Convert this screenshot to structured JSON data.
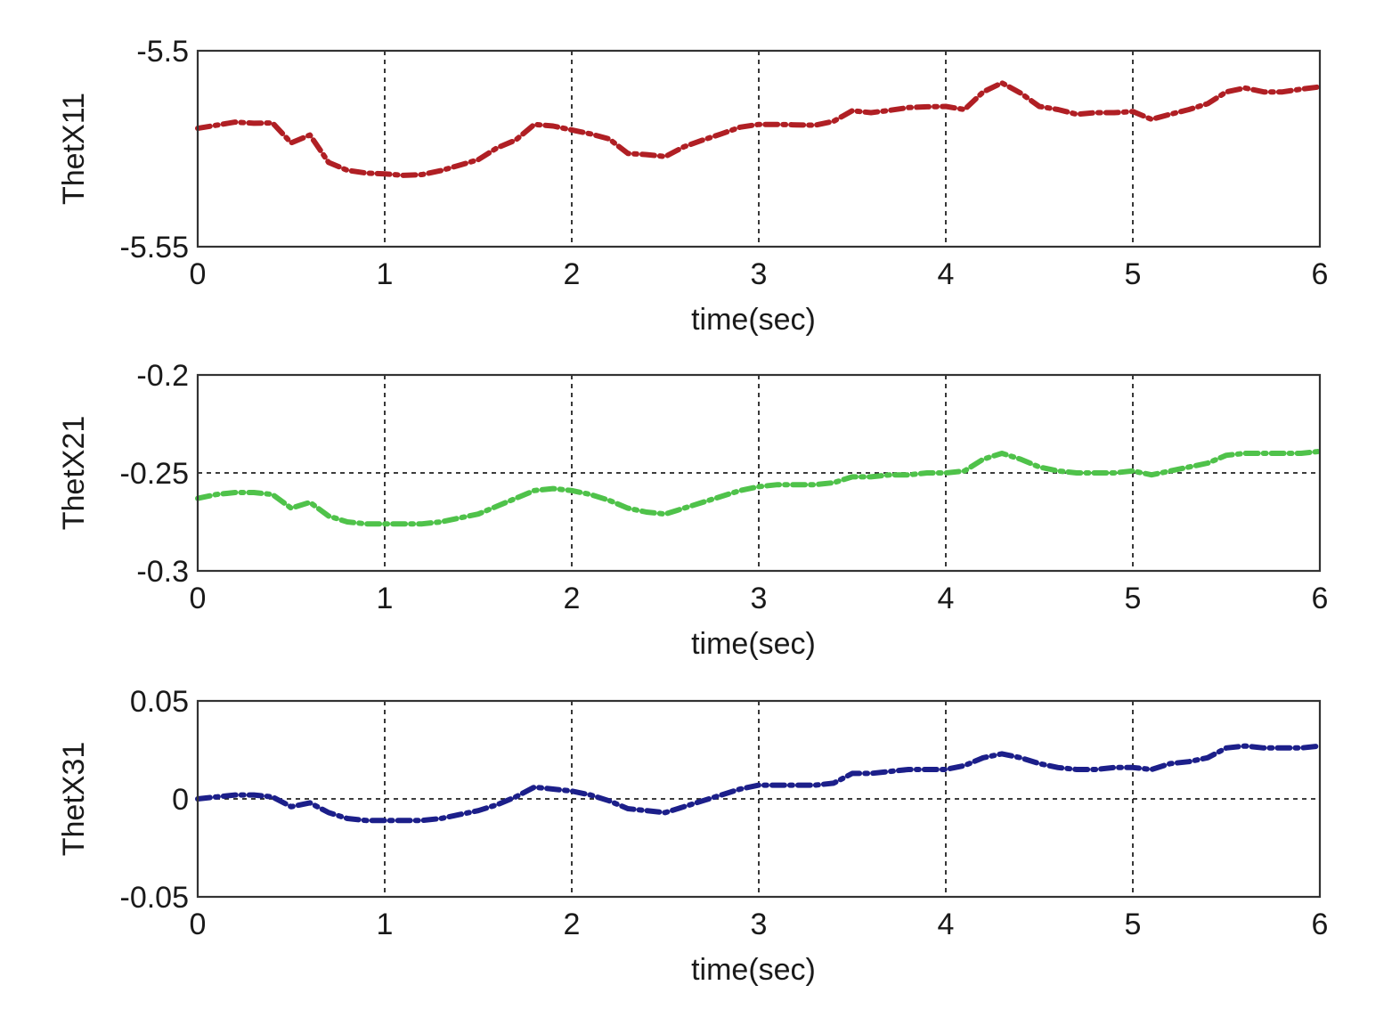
{
  "chart_data": [
    {
      "type": "line",
      "xlabel": "time(sec)",
      "ylabel": "ThetX11",
      "xlim": [
        0,
        6
      ],
      "ylim": [
        -5.55,
        -5.5
      ],
      "xticks": [
        0,
        1,
        2,
        3,
        4,
        5,
        6
      ],
      "xtick_labels": [
        "0",
        "1",
        "2",
        "3",
        "4",
        "5",
        "6"
      ],
      "yticks": [
        -5.55,
        -5.5
      ],
      "ytick_labels": [
        "-5.55",
        "-5.5"
      ],
      "grid": true,
      "color": "#b01f24",
      "series": [
        {
          "x": [
            0,
            0.1,
            0.2,
            0.3,
            0.4,
            0.5,
            0.6,
            0.7,
            0.8,
            0.9,
            1.0,
            1.1,
            1.2,
            1.3,
            1.4,
            1.5,
            1.6,
            1.7,
            1.8,
            1.9,
            2.0,
            2.1,
            2.2,
            2.3,
            2.4,
            2.5,
            2.6,
            2.7,
            2.8,
            2.9,
            3.0,
            3.1,
            3.2,
            3.3,
            3.4,
            3.5,
            3.6,
            3.7,
            3.8,
            3.9,
            4.0,
            4.1,
            4.2,
            4.3,
            4.4,
            4.5,
            4.6,
            4.7,
            4.8,
            4.9,
            5.0,
            5.1,
            5.2,
            5.3,
            5.4,
            5.5,
            5.6,
            5.7,
            5.8,
            5.9,
            6.0
          ],
          "y": [
            -5.5198,
            -5.519,
            -5.5182,
            -5.5185,
            -5.5184,
            -5.5235,
            -5.5215,
            -5.5285,
            -5.5305,
            -5.5312,
            -5.5314,
            -5.5318,
            -5.5316,
            -5.5306,
            -5.5292,
            -5.5278,
            -5.5248,
            -5.5228,
            -5.5188,
            -5.5192,
            -5.5202,
            -5.5212,
            -5.5225,
            -5.5262,
            -5.5265,
            -5.527,
            -5.5245,
            -5.5228,
            -5.5212,
            -5.5195,
            -5.5188,
            -5.5188,
            -5.5189,
            -5.519,
            -5.518,
            -5.5153,
            -5.5158,
            -5.5152,
            -5.5145,
            -5.5143,
            -5.5142,
            -5.515,
            -5.5105,
            -5.5082,
            -5.5108,
            -5.5142,
            -5.515,
            -5.5162,
            -5.5158,
            -5.5158,
            -5.5155,
            -5.5175,
            -5.5162,
            -5.515,
            -5.5135,
            -5.5105,
            -5.5095,
            -5.5105,
            -5.5105,
            -5.5098,
            -5.5092
          ]
        }
      ]
    },
    {
      "type": "line",
      "xlabel": "time(sec)",
      "ylabel": "ThetX21",
      "xlim": [
        0,
        6
      ],
      "ylim": [
        -0.3,
        -0.2
      ],
      "xticks": [
        0,
        1,
        2,
        3,
        4,
        5,
        6
      ],
      "xtick_labels": [
        "0",
        "1",
        "2",
        "3",
        "4",
        "5",
        "6"
      ],
      "yticks": [
        -0.3,
        -0.25,
        -0.2
      ],
      "ytick_labels": [
        "-0.3",
        "-0.25",
        "-0.2"
      ],
      "grid": true,
      "color": "#4fc24a",
      "series": [
        {
          "x": [
            0,
            0.1,
            0.2,
            0.3,
            0.4,
            0.5,
            0.6,
            0.7,
            0.8,
            0.9,
            1.0,
            1.1,
            1.2,
            1.3,
            1.4,
            1.5,
            1.6,
            1.7,
            1.8,
            1.9,
            2.0,
            2.1,
            2.2,
            2.3,
            2.4,
            2.5,
            2.6,
            2.7,
            2.8,
            2.9,
            3.0,
            3.1,
            3.2,
            3.3,
            3.4,
            3.5,
            3.6,
            3.7,
            3.8,
            3.9,
            4.0,
            4.1,
            4.2,
            4.3,
            4.4,
            4.5,
            4.6,
            4.7,
            4.8,
            4.9,
            5.0,
            5.1,
            5.2,
            5.3,
            5.4,
            5.5,
            5.6,
            5.7,
            5.8,
            5.9,
            6.0
          ],
          "y": [
            -0.263,
            -0.261,
            -0.26,
            -0.26,
            -0.261,
            -0.268,
            -0.265,
            -0.272,
            -0.275,
            -0.276,
            -0.276,
            -0.276,
            -0.276,
            -0.275,
            -0.273,
            -0.271,
            -0.267,
            -0.263,
            -0.259,
            -0.258,
            -0.259,
            -0.261,
            -0.264,
            -0.268,
            -0.27,
            -0.271,
            -0.268,
            -0.265,
            -0.262,
            -0.259,
            -0.257,
            -0.256,
            -0.256,
            -0.256,
            -0.255,
            -0.252,
            -0.252,
            -0.251,
            -0.251,
            -0.25,
            -0.25,
            -0.249,
            -0.243,
            -0.24,
            -0.243,
            -0.247,
            -0.249,
            -0.25,
            -0.25,
            -0.25,
            -0.249,
            -0.251,
            -0.249,
            -0.247,
            -0.245,
            -0.241,
            -0.24,
            -0.24,
            -0.24,
            -0.24,
            -0.239
          ]
        }
      ]
    },
    {
      "type": "line",
      "xlabel": "time(sec)",
      "ylabel": "ThetX31",
      "xlim": [
        0,
        6
      ],
      "ylim": [
        -0.05,
        0.05
      ],
      "xticks": [
        0,
        1,
        2,
        3,
        4,
        5,
        6
      ],
      "xtick_labels": [
        "0",
        "1",
        "2",
        "3",
        "4",
        "5",
        "6"
      ],
      "yticks": [
        -0.05,
        0,
        0.05
      ],
      "ytick_labels": [
        "-0.05",
        "0",
        "0.05"
      ],
      "grid": true,
      "color": "#1c1f8a",
      "series": [
        {
          "x": [
            0,
            0.1,
            0.2,
            0.3,
            0.4,
            0.5,
            0.6,
            0.7,
            0.8,
            0.9,
            1.0,
            1.1,
            1.2,
            1.3,
            1.4,
            1.5,
            1.6,
            1.7,
            1.8,
            1.9,
            2.0,
            2.1,
            2.2,
            2.3,
            2.4,
            2.5,
            2.6,
            2.7,
            2.8,
            2.9,
            3.0,
            3.1,
            3.2,
            3.3,
            3.4,
            3.5,
            3.6,
            3.7,
            3.8,
            3.9,
            4.0,
            4.1,
            4.2,
            4.3,
            4.4,
            4.5,
            4.6,
            4.7,
            4.8,
            4.9,
            5.0,
            5.1,
            5.2,
            5.3,
            5.4,
            5.5,
            5.6,
            5.7,
            5.8,
            5.9,
            6.0
          ],
          "y": [
            0.0,
            0.001,
            0.002,
            0.002,
            0.001,
            -0.004,
            -0.002,
            -0.007,
            -0.01,
            -0.011,
            -0.011,
            -0.011,
            -0.011,
            -0.01,
            -0.008,
            -0.006,
            -0.003,
            0.001,
            0.006,
            0.005,
            0.004,
            0.002,
            -0.001,
            -0.005,
            -0.006,
            -0.007,
            -0.004,
            -0.001,
            0.002,
            0.005,
            0.007,
            0.007,
            0.007,
            0.007,
            0.008,
            0.013,
            0.013,
            0.014,
            0.015,
            0.015,
            0.015,
            0.017,
            0.021,
            0.023,
            0.021,
            0.018,
            0.016,
            0.015,
            0.015,
            0.016,
            0.016,
            0.015,
            0.018,
            0.019,
            0.021,
            0.026,
            0.027,
            0.026,
            0.026,
            0.026,
            0.027
          ]
        }
      ]
    }
  ]
}
